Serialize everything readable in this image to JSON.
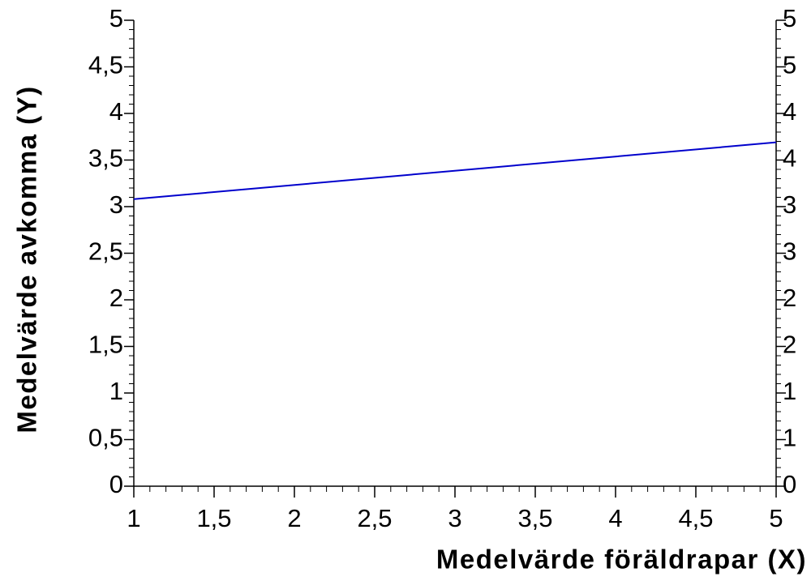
{
  "chart_data": {
    "type": "line",
    "xlabel": "Medelvärde föräldrapar (X)",
    "ylabel": "Medelvärde avkomma (Y)",
    "x": [
      1,
      5
    ],
    "series": [
      {
        "name": "Y",
        "color": "#0000cc",
        "values": [
          3.08,
          3.69
        ]
      }
    ],
    "xlim": [
      1,
      5
    ],
    "xticks": [
      1,
      {
        "value": 1.5,
        "label": "1,5"
      },
      2,
      {
        "value": 2.5,
        "label": "2,5"
      },
      3,
      {
        "value": 3.5,
        "label": "3,5"
      },
      4,
      {
        "value": 4.5,
        "label": "4,5"
      },
      5
    ],
    "ylim": [
      0,
      5
    ],
    "yticks": [
      0,
      {
        "value": 0.5,
        "label": "0,5"
      },
      1,
      {
        "value": 1.5,
        "label": "1,5"
      },
      2,
      {
        "value": 2.5,
        "label": "2,5"
      },
      3,
      {
        "value": 3.5,
        "label": "3,5"
      },
      4,
      {
        "value": 4.5,
        "label": "4,5"
      },
      5
    ],
    "y2lim": [
      0,
      5
    ],
    "y2ticks": [
      0,
      {
        "value": 0.5,
        "label": "1"
      },
      1,
      {
        "value": 1.5,
        "label": "2"
      },
      2,
      {
        "value": 2.5,
        "label": "3"
      },
      3,
      {
        "value": 3.5,
        "label": "4"
      },
      4,
      {
        "value": 4.5,
        "label": "5"
      },
      5
    ],
    "minor_ticks": {
      "x": 0.1,
      "y": 0.1
    }
  }
}
